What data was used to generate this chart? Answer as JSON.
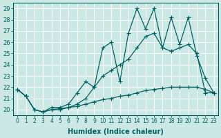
{
  "xlabel": "Humidex (Indice chaleur)",
  "background_color": "#cce8e4",
  "line_color": "#006060",
  "grid_color": "#ffffff",
  "xlim": [
    -0.5,
    23.5
  ],
  "ylim": [
    19.5,
    29.5
  ],
  "xticks": [
    0,
    1,
    2,
    3,
    4,
    5,
    6,
    7,
    8,
    9,
    10,
    11,
    12,
    13,
    14,
    15,
    16,
    17,
    18,
    19,
    20,
    21,
    22,
    23
  ],
  "yticks": [
    20,
    21,
    22,
    23,
    24,
    25,
    26,
    27,
    28,
    29
  ],
  "series": [
    {
      "x": [
        0,
        1,
        2,
        3,
        4,
        5,
        6,
        7,
        8,
        9,
        10,
        11,
        12,
        13,
        14,
        15,
        16,
        17,
        18,
        19,
        20,
        21,
        22,
        23
      ],
      "y": [
        21.8,
        21.2,
        20.0,
        19.8,
        20.0,
        20.1,
        20.2,
        20.3,
        20.5,
        20.7,
        20.9,
        21.0,
        21.2,
        21.3,
        21.5,
        21.7,
        21.8,
        21.9,
        22.0,
        22.0,
        22.0,
        22.0,
        21.8,
        21.5
      ]
    },
    {
      "x": [
        0,
        1,
        2,
        3,
        4,
        5,
        6,
        7,
        8,
        9,
        10,
        11,
        12,
        13,
        14,
        15,
        16,
        17,
        18,
        19,
        20,
        21,
        22,
        23
      ],
      "y": [
        21.8,
        21.2,
        20.0,
        19.8,
        20.0,
        20.0,
        20.2,
        20.5,
        21.0,
        22.0,
        23.0,
        23.5,
        24.0,
        24.5,
        25.5,
        26.5,
        26.8,
        25.5,
        25.2,
        25.5,
        25.8,
        25.0,
        21.5,
        21.5
      ]
    },
    {
      "x": [
        0,
        1,
        2,
        3,
        4,
        5,
        6,
        7,
        8,
        9,
        10,
        11,
        12,
        13,
        14,
        15,
        16,
        17,
        18,
        19,
        20,
        21,
        22,
        23
      ],
      "y": [
        21.8,
        21.2,
        20.0,
        19.8,
        20.2,
        20.2,
        20.5,
        21.5,
        22.5,
        22.0,
        25.5,
        26.0,
        22.5,
        26.8,
        29.0,
        27.2,
        29.0,
        25.5,
        28.2,
        25.8,
        28.2,
        24.8,
        22.8,
        21.5
      ]
    }
  ]
}
